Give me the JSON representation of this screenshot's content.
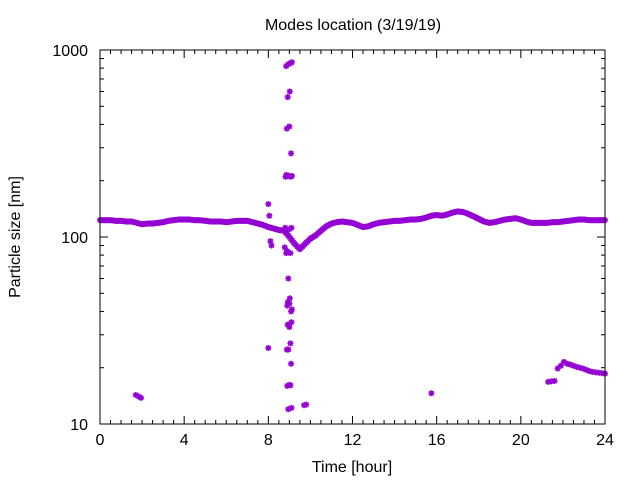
{
  "chart_data": {
    "type": "scatter",
    "title": "Modes location (3/19/19)",
    "xlabel": "Time [hour]",
    "ylabel": "Particle size [nm]",
    "xlim": [
      0,
      24
    ],
    "ylim": [
      10,
      1000
    ],
    "yscale": "log",
    "grid": false,
    "legend": "none",
    "color": "#9400d3",
    "x_ticks": [
      {
        "value": 0,
        "label": "0"
      },
      {
        "value": 4,
        "label": "4"
      },
      {
        "value": 8,
        "label": "8"
      },
      {
        "value": 12,
        "label": "12"
      },
      {
        "value": 16,
        "label": "16"
      },
      {
        "value": 20,
        "label": "20"
      },
      {
        "value": 24,
        "label": "24"
      }
    ],
    "y_ticks": [
      {
        "value": 10,
        "label": "10"
      },
      {
        "value": 100,
        "label": "100"
      },
      {
        "value": 1000,
        "label": "1000"
      }
    ],
    "baseline_mode": {
      "x": [
        0.0,
        0.25,
        0.5,
        0.75,
        1.0,
        1.25,
        1.5,
        1.75,
        2.0,
        2.25,
        2.5,
        2.75,
        3.0,
        3.25,
        3.5,
        3.75,
        4.0,
        4.25,
        4.5,
        4.75,
        5.0,
        5.25,
        5.5,
        5.75,
        6.0,
        6.25,
        6.5,
        6.75,
        7.0,
        7.25,
        7.5,
        7.75,
        8.0,
        8.25,
        8.5,
        8.75,
        9.0,
        9.25,
        9.5,
        9.75,
        10.0,
        10.25,
        10.5,
        10.75,
        11.0,
        11.25,
        11.5,
        11.75,
        12.0,
        12.25,
        12.5,
        12.75,
        13.0,
        13.25,
        13.5,
        13.75,
        14.0,
        14.25,
        14.5,
        14.75,
        15.0,
        15.25,
        15.5,
        15.75,
        16.0,
        16.25,
        16.5,
        16.75,
        17.0,
        17.25,
        17.5,
        17.75,
        18.0,
        18.25,
        18.5,
        18.75,
        19.0,
        19.25,
        19.5,
        19.75,
        20.0,
        20.25,
        20.5,
        20.75,
        21.0,
        21.25,
        21.5,
        21.75,
        22.0,
        22.25,
        22.5,
        22.75,
        23.0,
        23.25,
        23.5,
        23.75,
        24.0
      ],
      "y": [
        123,
        123,
        123,
        122,
        122,
        121,
        121,
        119,
        117,
        118,
        118,
        119,
        120,
        122,
        123,
        124,
        124,
        124,
        123,
        123,
        122,
        121,
        121,
        121,
        120,
        121,
        122,
        122,
        122,
        120,
        118,
        116,
        113,
        111,
        109,
        108,
        100,
        92,
        86,
        92,
        98,
        102,
        108,
        114,
        118,
        120,
        121,
        120,
        119,
        116,
        113,
        114,
        117,
        119,
        120,
        121,
        122,
        122,
        123,
        124,
        124,
        125,
        127,
        130,
        131,
        130,
        132,
        135,
        137,
        136,
        133,
        129,
        125,
        121,
        119,
        120,
        122,
        124,
        125,
        126,
        124,
        121,
        119,
        119,
        119,
        119,
        120,
        120,
        121,
        122,
        123,
        124,
        124,
        123,
        123,
        123,
        123
      ]
    },
    "burst_points": {
      "x": [
        8.85,
        8.95,
        9.05,
        9.12,
        8.92,
        9.02,
        8.88,
        9.0,
        9.08,
        8.82,
        8.86,
        8.98,
        9.06,
        9.12,
        8.0,
        8.05,
        8.1,
        8.15,
        8.8,
        9.0,
        9.1,
        8.9,
        9.05,
        8.78,
        8.85,
        8.95,
        9.02,
        8.93,
        9.0,
        8.9,
        9.08,
        9.12,
        9.1,
        8.92,
        9.0,
        8.88,
        8.95,
        9.05,
        9.08,
        8.0,
        9.0,
        8.9,
        9.05,
        9.1,
        8.95,
        9.7,
        9.8
      ],
      "y": [
        820,
        840,
        850,
        860,
        560,
        600,
        380,
        390,
        280,
        210,
        215,
        212,
        210,
        212,
        150,
        130,
        95,
        90,
        112,
        110,
        112,
        84,
        82,
        88,
        82,
        60,
        47,
        45,
        44,
        43,
        40,
        41,
        35,
        34,
        33,
        25,
        25,
        27,
        21,
        25.5,
        16.2,
        16,
        16.1,
        12.2,
        12,
        12.6,
        12.7
      ]
    },
    "early_small_mode": {
      "x": [
        1.7,
        1.85,
        1.95
      ],
      "y": [
        14.3,
        14.0,
        13.8
      ]
    },
    "isolated_point": {
      "x": [
        15.75
      ],
      "y": [
        14.6
      ]
    },
    "late_small_mode": {
      "x": [
        21.3,
        21.45,
        21.6,
        21.75,
        21.9,
        22.05,
        22.2,
        22.35,
        22.5,
        22.65,
        22.8,
        22.95,
        23.1,
        23.25,
        23.4,
        23.55,
        23.7,
        23.85,
        24.0
      ],
      "y": [
        16.8,
        16.9,
        17.0,
        19.8,
        20.5,
        21.5,
        21.0,
        20.8,
        20.5,
        20.2,
        20.0,
        19.8,
        19.5,
        19.2,
        19.0,
        18.9,
        18.8,
        18.7,
        18.6
      ]
    }
  }
}
